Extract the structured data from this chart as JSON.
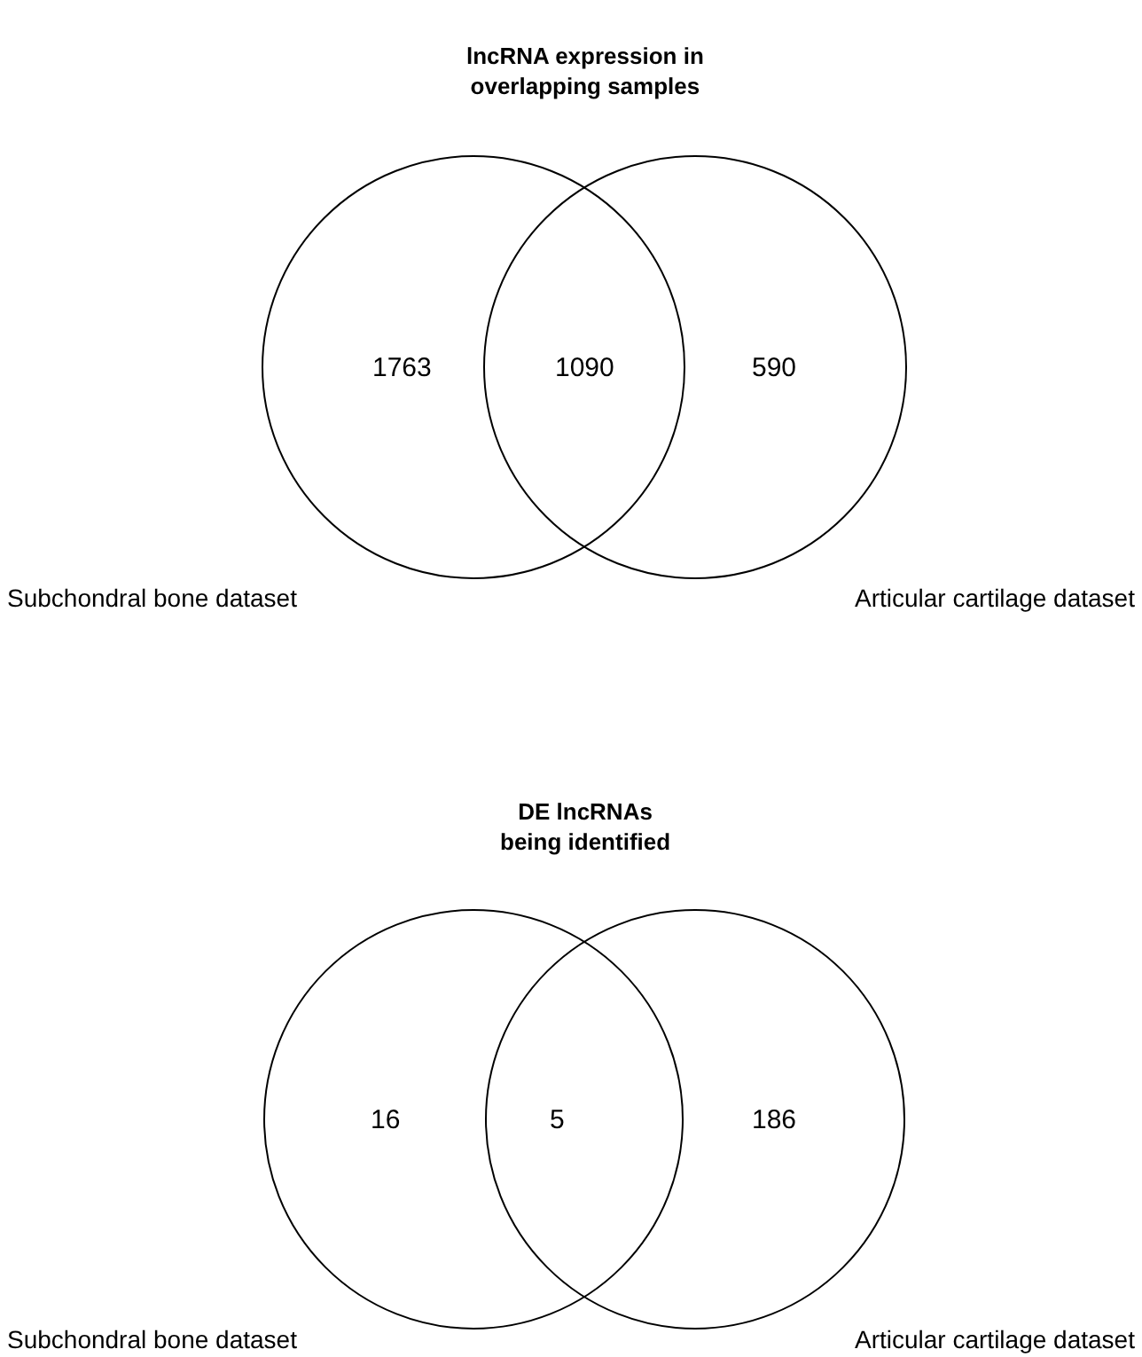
{
  "chart_data": [
    {
      "type": "other",
      "title": "lncRNA expression in\noverlapping samples",
      "categories": [
        "Subchondral bone dataset",
        null,
        "Articular cartilage dataset"
      ],
      "values": [
        1763,
        1090,
        590
      ],
      "data_labels": true
    },
    {
      "type": "other",
      "title": "DE lncRNAs\nbeing identified",
      "categories": [
        "Subchondral bone dataset",
        null,
        "Articular cartilage dataset"
      ],
      "values": [
        16,
        5,
        186
      ],
      "data_labels": true
    }
  ]
}
